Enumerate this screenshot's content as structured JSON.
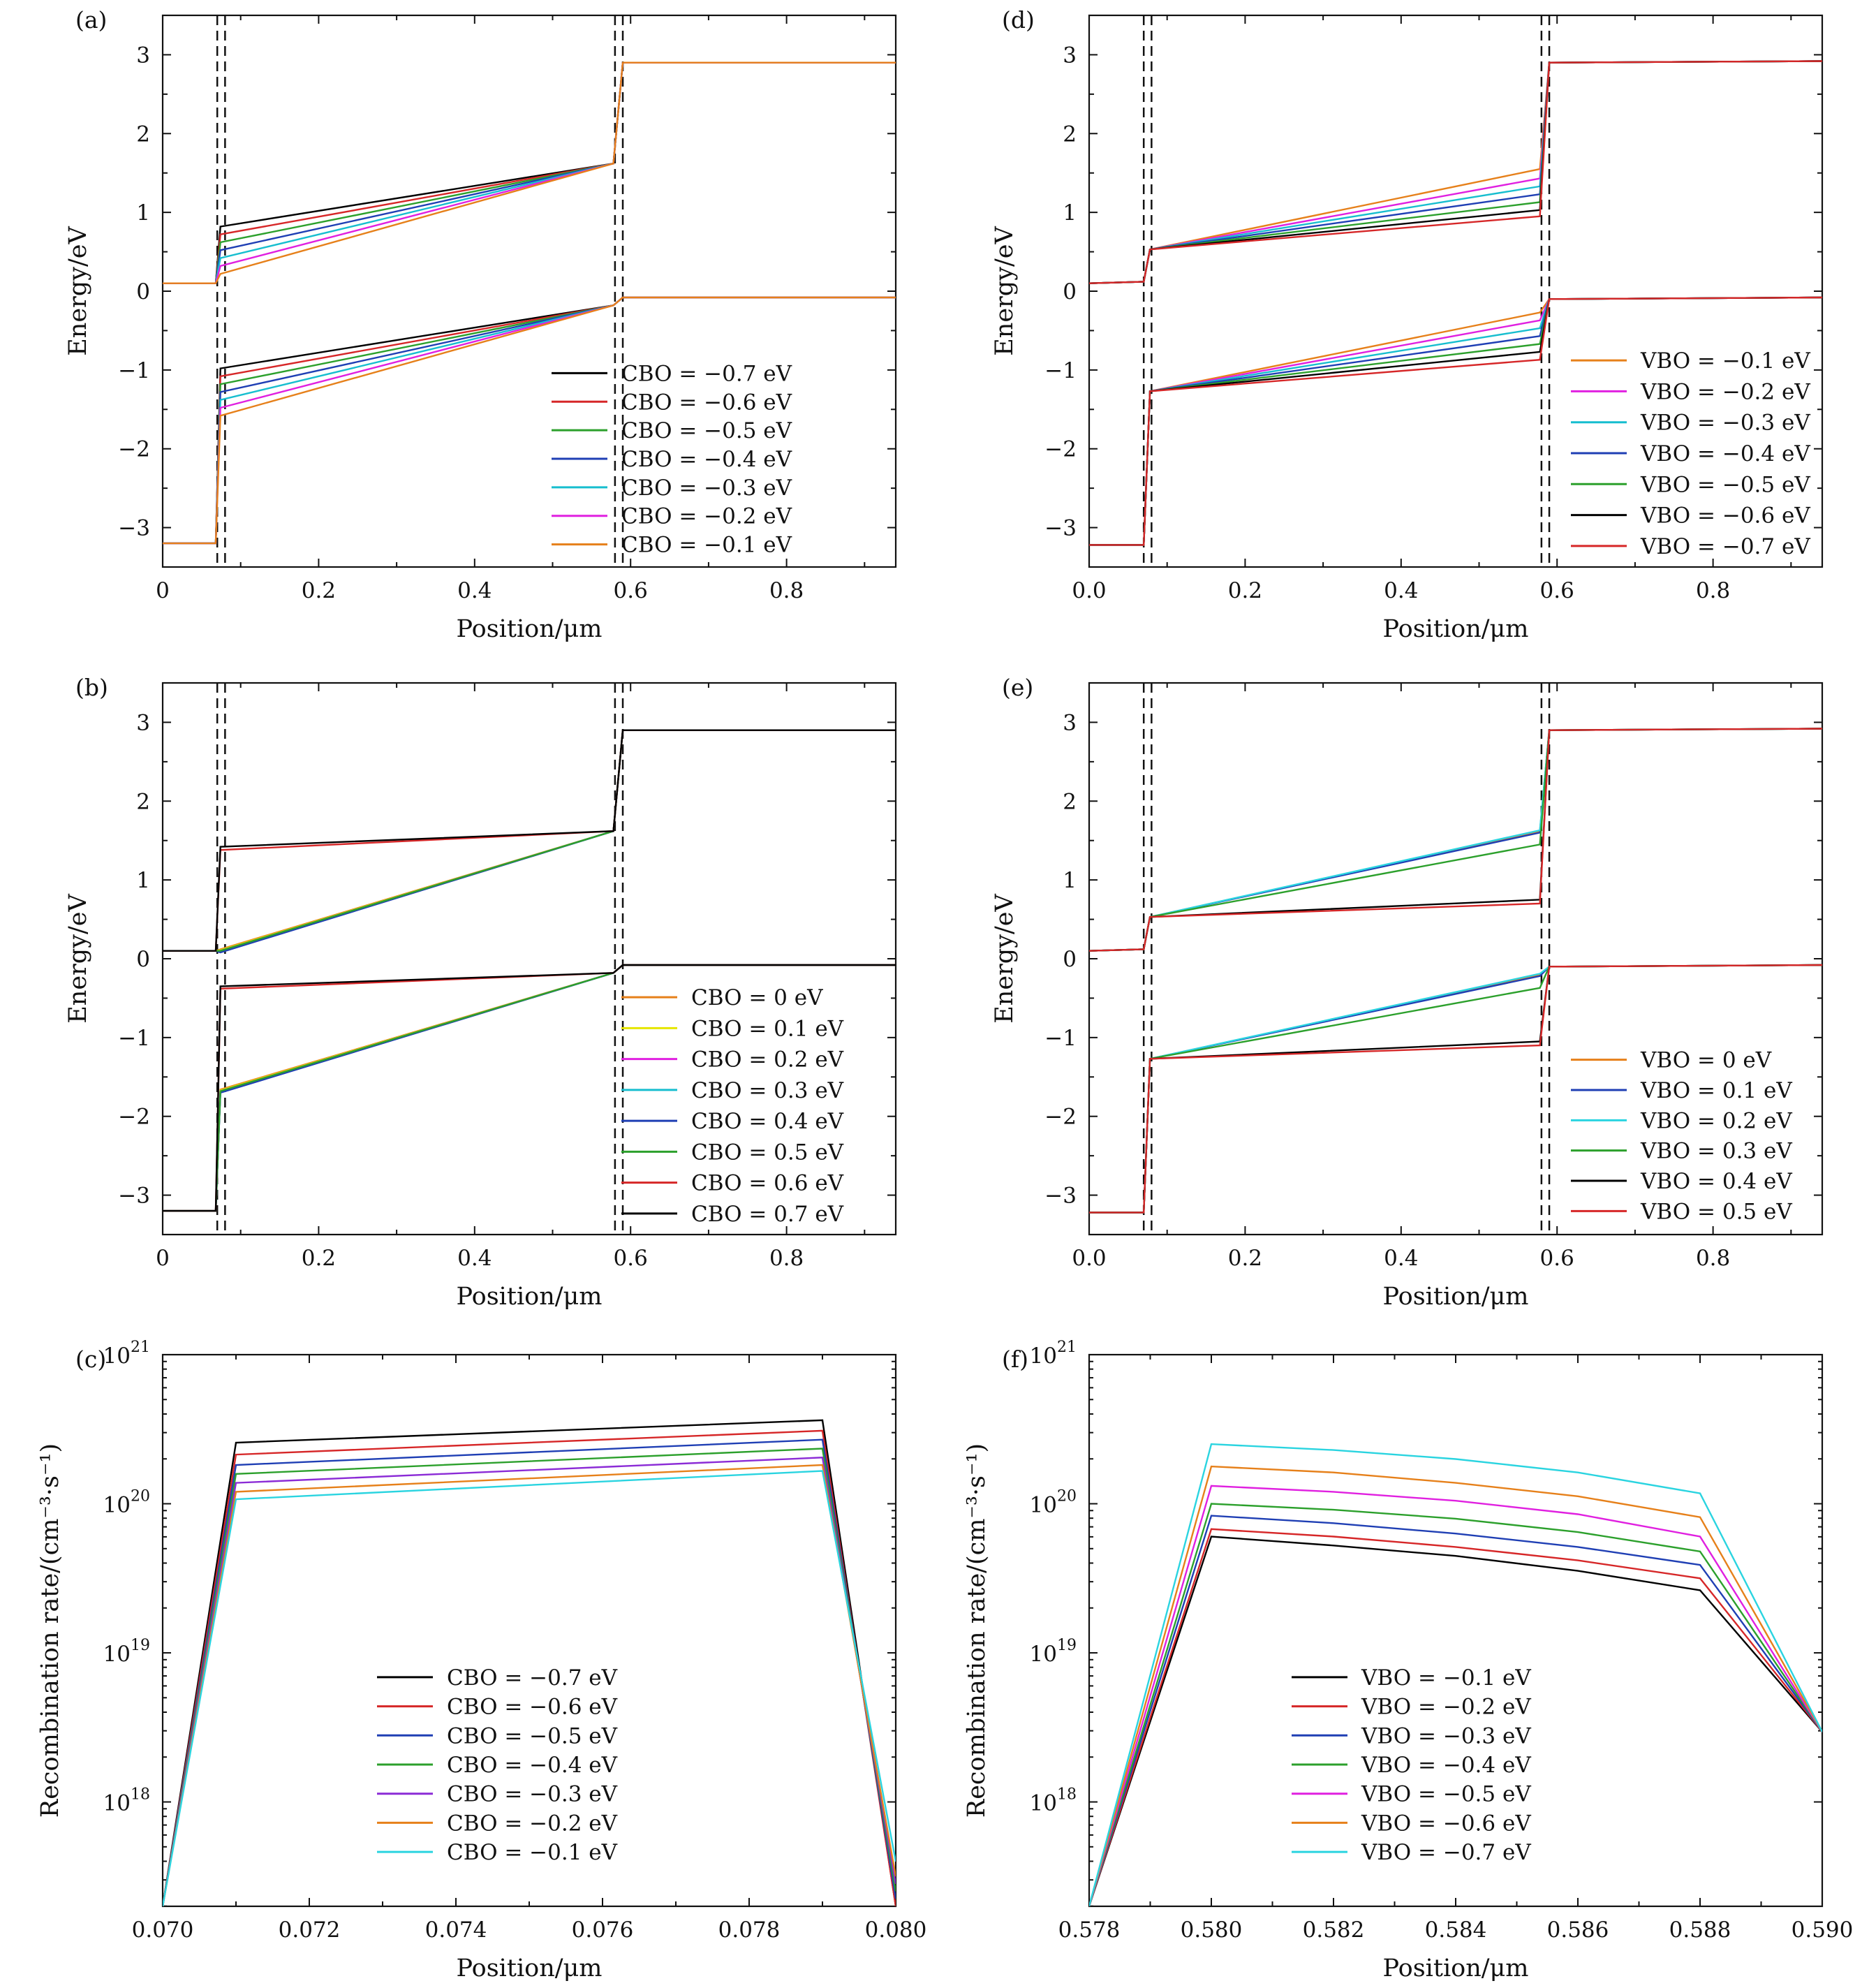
{
  "chart_data": [
    {
      "panel_label": "(a)",
      "type": "line",
      "xlabel": "Position/μm",
      "ylabel": "Energy/eV",
      "xlim": [
        0,
        0.94
      ],
      "ylim": [
        -3.5,
        3.5
      ],
      "xticks": [
        0,
        0.2,
        0.4,
        0.6,
        0.8
      ],
      "xtick_labels": [
        "0",
        "0.2",
        "0.4",
        "0.6",
        "0.8"
      ],
      "yticks": [
        -3,
        -2,
        -1,
        0,
        1,
        2,
        3
      ],
      "ytick_labels": [
        "−3",
        "−2",
        "−1",
        "0",
        "1",
        "2",
        "3"
      ],
      "legend_position": "bottom-right",
      "dashed_lines_x": [
        0.07,
        0.08,
        0.58,
        0.59
      ],
      "has_inset": true,
      "series": [
        {
          "name": "CBO = −0.7 eV",
          "color": "#000000",
          "cb_start": 0.82,
          "vb_start": -0.98
        },
        {
          "name": "CBO = −0.6 eV",
          "color": "#d62728",
          "cb_start": 0.72,
          "vb_start": -1.08
        },
        {
          "name": "CBO = −0.5 eV",
          "color": "#2ca02c",
          "cb_start": 0.62,
          "vb_start": -1.18
        },
        {
          "name": "CBO = −0.4 eV",
          "color": "#1f3fb4",
          "cb_start": 0.52,
          "vb_start": -1.28
        },
        {
          "name": "CBO = −0.3 eV",
          "color": "#17becf",
          "cb_start": 0.42,
          "vb_start": -1.38
        },
        {
          "name": "CBO = −0.2 eV",
          "color": "#e020e0",
          "cb_start": 0.32,
          "vb_start": -1.48
        },
        {
          "name": "CBO = −0.1 eV",
          "color": "#e6801a",
          "cb_start": 0.22,
          "vb_start": -1.58
        }
      ]
    },
    {
      "panel_label": "(b)",
      "type": "line",
      "xlabel": "Position/μm",
      "ylabel": "Energy/eV",
      "xlim": [
        0,
        0.94
      ],
      "ylim": [
        -3.5,
        3.5
      ],
      "xticks": [
        0,
        0.2,
        0.4,
        0.6,
        0.8
      ],
      "xtick_labels": [
        "0",
        "0.2",
        "0.4",
        "0.6",
        "0.8"
      ],
      "yticks": [
        -3,
        -2,
        -1,
        0,
        1,
        2,
        3
      ],
      "ytick_labels": [
        "−3",
        "−2",
        "−1",
        "0",
        "1",
        "2",
        "3"
      ],
      "legend_position": "bottom-right",
      "dashed_lines_x": [
        0.07,
        0.08,
        0.58,
        0.59
      ],
      "has_inset": true,
      "series": [
        {
          "name": "CBO = 0 eV",
          "color": "#e6801a",
          "cb_start": 0.12,
          "vb_start": -1.66
        },
        {
          "name": "CBO = 0.1 eV",
          "color": "#e6e600",
          "cb_start": 0.11,
          "vb_start": -1.67
        },
        {
          "name": "CBO = 0.2 eV",
          "color": "#e020e0",
          "cb_start": 0.1,
          "vb_start": -1.68
        },
        {
          "name": "CBO = 0.3 eV",
          "color": "#17becf",
          "cb_start": 0.09,
          "vb_start": -1.69
        },
        {
          "name": "CBO = 0.4 eV",
          "color": "#1f3fb4",
          "cb_start": 0.08,
          "vb_start": -1.7
        },
        {
          "name": "CBO = 0.5 eV",
          "color": "#2ca02c",
          "cb_start": 0.1,
          "vb_start": -1.68
        },
        {
          "name": "CBO = 0.6 eV",
          "color": "#d62728",
          "cb_start": 1.38,
          "vb_start": -0.38
        },
        {
          "name": "CBO = 0.7 eV",
          "color": "#000000",
          "cb_start": 1.42,
          "vb_start": -0.35
        }
      ]
    },
    {
      "panel_label": "(c)",
      "type": "line",
      "xlabel": "Position/μm",
      "ylabel": "Recombination rate/(cm⁻³·s⁻¹)",
      "xlim": [
        0.07,
        0.08
      ],
      "ylim_log10": [
        17.3,
        21
      ],
      "log_scale_y": true,
      "xticks": [
        0.07,
        0.072,
        0.074,
        0.076,
        0.078,
        0.08
      ],
      "xtick_labels": [
        "0.070",
        "0.072",
        "0.074",
        "0.076",
        "0.078",
        "0.080"
      ],
      "yticks_log10": [
        18,
        19,
        20,
        21
      ],
      "legend_position": "bottom-center",
      "series": [
        {
          "name": "CBO = −0.7 eV",
          "color": "#000000",
          "x": [
            0.07,
            0.071,
            0.079,
            0.08
          ],
          "log10_y": [
            17.3,
            20.41,
            20.56,
            17.3
          ]
        },
        {
          "name": "CBO = −0.6 eV",
          "color": "#d62728",
          "x": [
            0.07,
            0.071,
            0.079,
            0.08
          ],
          "log10_y": [
            17.3,
            20.33,
            20.49,
            17.3
          ]
        },
        {
          "name": "CBO = −0.5 eV",
          "color": "#1f3fb4",
          "x": [
            0.07,
            0.071,
            0.079,
            0.08
          ],
          "log10_y": [
            17.3,
            20.26,
            20.43,
            17.35
          ]
        },
        {
          "name": "CBO = −0.4 eV",
          "color": "#2ca02c",
          "x": [
            0.07,
            0.071,
            0.079,
            0.08
          ],
          "log10_y": [
            17.3,
            20.2,
            20.37,
            17.4
          ]
        },
        {
          "name": "CBO = −0.3 eV",
          "color": "#8b2bd6",
          "x": [
            0.07,
            0.071,
            0.079,
            0.08
          ],
          "log10_y": [
            17.3,
            20.14,
            20.31,
            17.45
          ]
        },
        {
          "name": "CBO = −0.2 eV",
          "color": "#e6801a",
          "x": [
            0.07,
            0.071,
            0.079,
            0.08
          ],
          "log10_y": [
            17.3,
            20.08,
            20.26,
            17.5
          ]
        },
        {
          "name": "CBO = −0.1 eV",
          "color": "#2ad4e0",
          "x": [
            0.07,
            0.071,
            0.079,
            0.08
          ],
          "log10_y": [
            17.3,
            20.03,
            20.22,
            17.6
          ]
        }
      ]
    },
    {
      "panel_label": "(d)",
      "type": "line",
      "xlabel": "Position/μm",
      "ylabel": "Energy/eV",
      "xlim": [
        0,
        0.94
      ],
      "ylim": [
        -3.5,
        3.5
      ],
      "xticks": [
        0,
        0.2,
        0.4,
        0.6,
        0.8
      ],
      "xtick_labels": [
        "0.0",
        "0.2",
        "0.4",
        "0.6",
        "0.8"
      ],
      "yticks": [
        -3,
        -2,
        -1,
        0,
        1,
        2,
        3
      ],
      "ytick_labels": [
        "−3",
        "−2",
        "−1",
        "0",
        "1",
        "2",
        "3"
      ],
      "legend_position": "bottom-right",
      "dashed_lines_x": [
        0.07,
        0.08,
        0.58,
        0.59
      ],
      "has_inset": true,
      "series": [
        {
          "name": "VBO = −0.1 eV",
          "color": "#e6801a",
          "cb_end": 1.55,
          "vb_end": -0.27
        },
        {
          "name": "VBO = −0.2 eV",
          "color": "#e020e0",
          "cb_end": 1.43,
          "vb_end": -0.37
        },
        {
          "name": "VBO = −0.3 eV",
          "color": "#17becf",
          "cb_end": 1.33,
          "vb_end": -0.47
        },
        {
          "name": "VBO = −0.4 eV",
          "color": "#1f3fb4",
          "cb_end": 1.23,
          "vb_end": -0.57
        },
        {
          "name": "VBO = −0.5 eV",
          "color": "#2ca02c",
          "cb_end": 1.13,
          "vb_end": -0.67
        },
        {
          "name": "VBO = −0.6 eV",
          "color": "#000000",
          "cb_end": 1.03,
          "vb_end": -0.77
        },
        {
          "name": "VBO = −0.7 eV",
          "color": "#d62728",
          "cb_end": 0.95,
          "vb_end": -0.87
        }
      ]
    },
    {
      "panel_label": "(e)",
      "type": "line",
      "xlabel": "Position/μm",
      "ylabel": "Energy/eV",
      "xlim": [
        0,
        0.94
      ],
      "ylim": [
        -3.5,
        3.5
      ],
      "xticks": [
        0,
        0.2,
        0.4,
        0.6,
        0.8
      ],
      "xtick_labels": [
        "0.0",
        "0.2",
        "0.4",
        "0.6",
        "0.8"
      ],
      "yticks": [
        -3,
        -2,
        -1,
        0,
        1,
        2,
        3
      ],
      "ytick_labels": [
        "−3",
        "−2",
        "−1",
        "0",
        "1",
        "2",
        "3"
      ],
      "legend_position": "bottom-right",
      "dashed_lines_x": [
        0.07,
        0.08,
        0.58,
        0.59
      ],
      "has_inset": true,
      "series": [
        {
          "name": "VBO = 0 eV",
          "color": "#e6801a",
          "cb_end": 1.62,
          "vb_end": -0.2
        },
        {
          "name": "VBO = 0.1 eV",
          "color": "#1f3fb4",
          "cb_end": 1.6,
          "vb_end": -0.22
        },
        {
          "name": "VBO = 0.2 eV",
          "color": "#2ad4e0",
          "cb_end": 1.63,
          "vb_end": -0.19
        },
        {
          "name": "VBO = 0.3 eV",
          "color": "#2ca02c",
          "cb_end": 1.45,
          "vb_end": -0.37
        },
        {
          "name": "VBO = 0.4 eV",
          "color": "#000000",
          "cb_end": 0.75,
          "vb_end": -1.05
        },
        {
          "name": "VBO = 0.5 eV",
          "color": "#d62728",
          "cb_end": 0.7,
          "vb_end": -1.1
        }
      ]
    },
    {
      "panel_label": "(f)",
      "type": "line",
      "xlabel": "Position/μm",
      "ylabel": "Recombination rate/(cm⁻³·s⁻¹)",
      "xlim": [
        0.578,
        0.59
      ],
      "ylim_log10": [
        17.3,
        21
      ],
      "log_scale_y": true,
      "xticks": [
        0.578,
        0.58,
        0.582,
        0.584,
        0.586,
        0.588,
        0.59
      ],
      "xtick_labels": [
        "0.578",
        "0.580",
        "0.582",
        "0.584",
        "0.586",
        "0.588",
        "0.590"
      ],
      "yticks_log10": [
        18,
        19,
        20,
        21
      ],
      "legend_position": "bottom-center",
      "series": [
        {
          "name": "VBO = −0.1 eV",
          "color": "#000000",
          "x": [
            0.578,
            0.58,
            0.582,
            0.584,
            0.586,
            0.588,
            0.59
          ],
          "log10_y": [
            17.3,
            19.78,
            19.72,
            19.65,
            19.55,
            19.42,
            18.47
          ]
        },
        {
          "name": "VBO = −0.2 eV",
          "color": "#d62728",
          "x": [
            0.578,
            0.58,
            0.582,
            0.584,
            0.586,
            0.588,
            0.59
          ],
          "log10_y": [
            17.3,
            19.83,
            19.78,
            19.71,
            19.62,
            19.5,
            18.47
          ]
        },
        {
          "name": "VBO = −0.3 eV",
          "color": "#1f3fb4",
          "x": [
            0.578,
            0.58,
            0.582,
            0.584,
            0.586,
            0.588,
            0.59
          ],
          "log10_y": [
            17.3,
            19.92,
            19.87,
            19.8,
            19.71,
            19.59,
            18.47
          ]
        },
        {
          "name": "VBO = −0.4 eV",
          "color": "#2ca02c",
          "x": [
            0.578,
            0.58,
            0.582,
            0.584,
            0.586,
            0.588,
            0.59
          ],
          "log10_y": [
            17.3,
            20.0,
            19.96,
            19.9,
            19.81,
            19.68,
            18.47
          ]
        },
        {
          "name": "VBO = −0.5 eV",
          "color": "#e020e0",
          "x": [
            0.578,
            0.58,
            0.582,
            0.584,
            0.586,
            0.588,
            0.59
          ],
          "log10_y": [
            17.3,
            20.12,
            20.08,
            20.02,
            19.93,
            19.78,
            18.47
          ]
        },
        {
          "name": "VBO = −0.6 eV",
          "color": "#e6801a",
          "x": [
            0.578,
            0.58,
            0.582,
            0.584,
            0.586,
            0.588,
            0.59
          ],
          "log10_y": [
            17.3,
            20.25,
            20.21,
            20.14,
            20.05,
            19.91,
            18.47
          ]
        },
        {
          "name": "VBO = −0.7 eV",
          "color": "#2ad4e0",
          "x": [
            0.578,
            0.58,
            0.582,
            0.584,
            0.586,
            0.588,
            0.59
          ],
          "log10_y": [
            17.3,
            20.4,
            20.36,
            20.3,
            20.21,
            20.07,
            18.47
          ]
        }
      ]
    }
  ]
}
